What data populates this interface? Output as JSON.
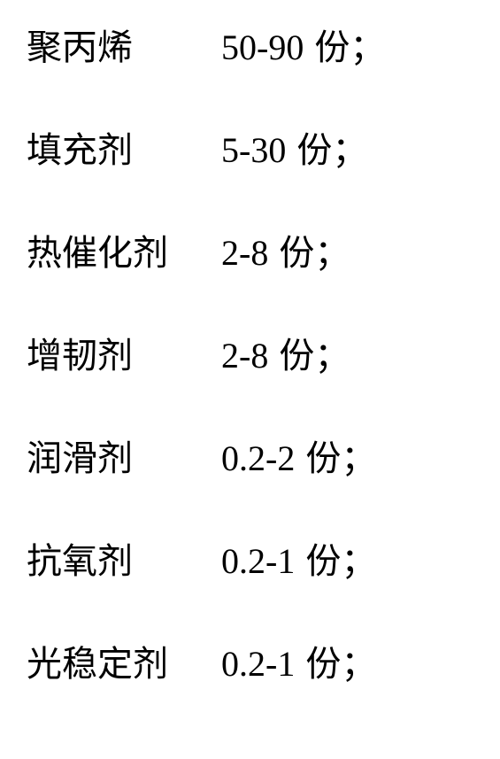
{
  "rows": [
    {
      "label": "聚丙烯",
      "value": "50-90",
      "unit": "份；"
    },
    {
      "label": "填充剂",
      "value": "5-30",
      "unit": "份；"
    },
    {
      "label": "热催化剂",
      "value": "2-8",
      "unit": "份；"
    },
    {
      "label": "增韧剂",
      "value": "2-8",
      "unit": "份；"
    },
    {
      "label": "润滑剂",
      "value": "0.2-2",
      "unit": "份；"
    },
    {
      "label": "抗氧剂",
      "value": "0.2-1",
      "unit": "份；"
    },
    {
      "label": "光稳定剂",
      "value": "0.2-1",
      "unit": "份；"
    }
  ]
}
